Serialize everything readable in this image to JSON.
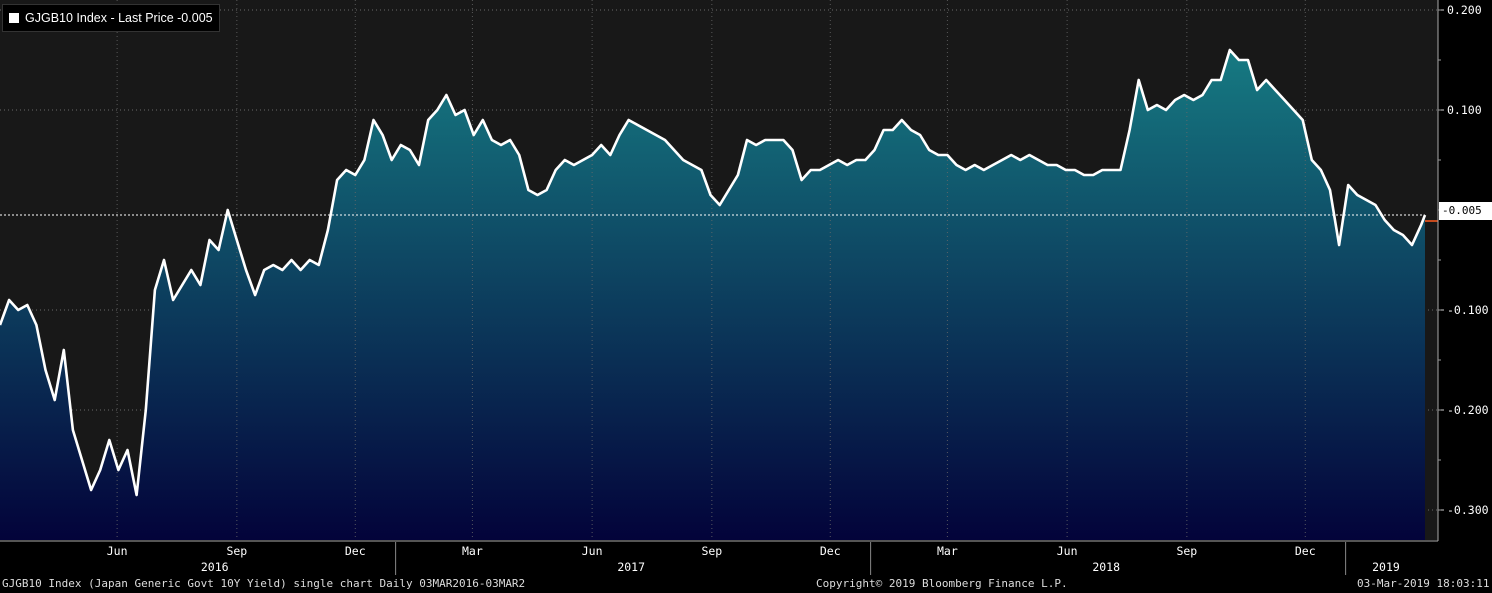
{
  "legend": {
    "label": "GJGB10 Index - Last Price -0.005"
  },
  "footer": {
    "left": "GJGB10 Index (Japan Generic Govt 10Y Yield) single chart  Daily 03MAR2016-03MAR2",
    "center": "Copyright© 2019 Bloomberg Finance L.P.",
    "right": "03-Mar-2019 18:03:11"
  },
  "colors": {
    "background": "#181818",
    "line": "#ffffff",
    "area_top": "#167a82",
    "area_bottom": "#03033a",
    "grid": "#6a6a6a",
    "last_marker": "#ff5a1f"
  },
  "chart_data": {
    "type": "area",
    "title": "GJGB10 Index - Last Price",
    "last_value_label": "-0.005",
    "ylim": [
      -0.33,
      0.21
    ],
    "y_ticks": [
      "0.200",
      "0.100",
      "-0.005",
      "-0.100",
      "-0.200",
      "-0.300"
    ],
    "y_tick_values": [
      0.2,
      0.1,
      -0.005,
      -0.1,
      -0.2,
      -0.3
    ],
    "grid": true,
    "x_month_labels": [
      {
        "date": "2016-06-01",
        "label": "Jun"
      },
      {
        "date": "2016-09-01",
        "label": "Sep"
      },
      {
        "date": "2016-12-01",
        "label": "Dec"
      },
      {
        "date": "2017-03-01",
        "label": "Mar"
      },
      {
        "date": "2017-06-01",
        "label": "Jun"
      },
      {
        "date": "2017-09-01",
        "label": "Sep"
      },
      {
        "date": "2017-12-01",
        "label": "Dec"
      },
      {
        "date": "2018-03-01",
        "label": "Mar"
      },
      {
        "date": "2018-06-01",
        "label": "Jun"
      },
      {
        "date": "2018-09-01",
        "label": "Sep"
      },
      {
        "date": "2018-12-01",
        "label": "Dec"
      }
    ],
    "x_year_labels": [
      {
        "date": "2016-08-15",
        "label": "2016"
      },
      {
        "date": "2017-07-01",
        "label": "2017"
      },
      {
        "date": "2018-07-01",
        "label": "2018"
      },
      {
        "date": "2019-02-01",
        "label": "2019"
      }
    ],
    "x_range": [
      "2016-03-03",
      "2019-03-03"
    ],
    "series": [
      {
        "name": "GJGB10 Index",
        "points": [
          [
            "2016-03-03",
            -0.115
          ],
          [
            "2016-03-10",
            -0.09
          ],
          [
            "2016-03-17",
            -0.1
          ],
          [
            "2016-03-24",
            -0.095
          ],
          [
            "2016-03-31",
            -0.115
          ],
          [
            "2016-04-07",
            -0.16
          ],
          [
            "2016-04-14",
            -0.19
          ],
          [
            "2016-04-21",
            -0.14
          ],
          [
            "2016-04-28",
            -0.22
          ],
          [
            "2016-05-05",
            -0.25
          ],
          [
            "2016-05-12",
            -0.28
          ],
          [
            "2016-05-19",
            -0.26
          ],
          [
            "2016-05-26",
            -0.23
          ],
          [
            "2016-06-02",
            -0.26
          ],
          [
            "2016-06-09",
            -0.24
          ],
          [
            "2016-06-16",
            -0.285
          ],
          [
            "2016-06-23",
            -0.2
          ],
          [
            "2016-06-30",
            -0.08
          ],
          [
            "2016-07-07",
            -0.05
          ],
          [
            "2016-07-14",
            -0.09
          ],
          [
            "2016-07-21",
            -0.075
          ],
          [
            "2016-07-28",
            -0.06
          ],
          [
            "2016-08-04",
            -0.075
          ],
          [
            "2016-08-11",
            -0.03
          ],
          [
            "2016-08-18",
            -0.04
          ],
          [
            "2016-08-25",
            0.0
          ],
          [
            "2016-09-01",
            -0.03
          ],
          [
            "2016-09-08",
            -0.06
          ],
          [
            "2016-09-15",
            -0.085
          ],
          [
            "2016-09-22",
            -0.06
          ],
          [
            "2016-09-29",
            -0.055
          ],
          [
            "2016-10-06",
            -0.06
          ],
          [
            "2016-10-13",
            -0.05
          ],
          [
            "2016-10-20",
            -0.06
          ],
          [
            "2016-10-27",
            -0.05
          ],
          [
            "2016-11-03",
            -0.055
          ],
          [
            "2016-11-10",
            -0.02
          ],
          [
            "2016-11-17",
            0.03
          ],
          [
            "2016-11-24",
            0.04
          ],
          [
            "2016-12-01",
            0.035
          ],
          [
            "2016-12-08",
            0.05
          ],
          [
            "2016-12-15",
            0.09
          ],
          [
            "2016-12-22",
            0.075
          ],
          [
            "2016-12-29",
            0.05
          ],
          [
            "2017-01-05",
            0.065
          ],
          [
            "2017-01-12",
            0.06
          ],
          [
            "2017-01-19",
            0.045
          ],
          [
            "2017-01-26",
            0.09
          ],
          [
            "2017-02-02",
            0.1
          ],
          [
            "2017-02-09",
            0.115
          ],
          [
            "2017-02-16",
            0.095
          ],
          [
            "2017-02-23",
            0.1
          ],
          [
            "2017-03-02",
            0.075
          ],
          [
            "2017-03-09",
            0.09
          ],
          [
            "2017-03-16",
            0.07
          ],
          [
            "2017-03-23",
            0.065
          ],
          [
            "2017-03-30",
            0.07
          ],
          [
            "2017-04-06",
            0.055
          ],
          [
            "2017-04-13",
            0.02
          ],
          [
            "2017-04-20",
            0.015
          ],
          [
            "2017-04-27",
            0.02
          ],
          [
            "2017-05-04",
            0.04
          ],
          [
            "2017-05-11",
            0.05
          ],
          [
            "2017-05-18",
            0.045
          ],
          [
            "2017-05-25",
            0.05
          ],
          [
            "2017-06-01",
            0.055
          ],
          [
            "2017-06-08",
            0.065
          ],
          [
            "2017-06-15",
            0.055
          ],
          [
            "2017-06-22",
            0.075
          ],
          [
            "2017-06-29",
            0.09
          ],
          [
            "2017-07-06",
            0.085
          ],
          [
            "2017-07-13",
            0.08
          ],
          [
            "2017-07-20",
            0.075
          ],
          [
            "2017-07-27",
            0.07
          ],
          [
            "2017-08-03",
            0.06
          ],
          [
            "2017-08-10",
            0.05
          ],
          [
            "2017-08-17",
            0.045
          ],
          [
            "2017-08-24",
            0.04
          ],
          [
            "2017-08-31",
            0.015
          ],
          [
            "2017-09-07",
            0.005
          ],
          [
            "2017-09-14",
            0.02
          ],
          [
            "2017-09-21",
            0.035
          ],
          [
            "2017-09-28",
            0.07
          ],
          [
            "2017-10-05",
            0.065
          ],
          [
            "2017-10-12",
            0.07
          ],
          [
            "2017-10-19",
            0.07
          ],
          [
            "2017-10-26",
            0.07
          ],
          [
            "2017-11-02",
            0.06
          ],
          [
            "2017-11-09",
            0.03
          ],
          [
            "2017-11-16",
            0.04
          ],
          [
            "2017-11-23",
            0.04
          ],
          [
            "2017-11-30",
            0.045
          ],
          [
            "2017-12-07",
            0.05
          ],
          [
            "2017-12-14",
            0.045
          ],
          [
            "2017-12-21",
            0.05
          ],
          [
            "2017-12-28",
            0.05
          ],
          [
            "2018-01-04",
            0.06
          ],
          [
            "2018-01-11",
            0.08
          ],
          [
            "2018-01-18",
            0.08
          ],
          [
            "2018-01-25",
            0.09
          ],
          [
            "2018-02-01",
            0.08
          ],
          [
            "2018-02-08",
            0.075
          ],
          [
            "2018-02-15",
            0.06
          ],
          [
            "2018-02-22",
            0.055
          ],
          [
            "2018-03-01",
            0.055
          ],
          [
            "2018-03-08",
            0.045
          ],
          [
            "2018-03-15",
            0.04
          ],
          [
            "2018-03-22",
            0.045
          ],
          [
            "2018-03-29",
            0.04
          ],
          [
            "2018-04-05",
            0.045
          ],
          [
            "2018-04-12",
            0.05
          ],
          [
            "2018-04-19",
            0.055
          ],
          [
            "2018-04-26",
            0.05
          ],
          [
            "2018-05-03",
            0.055
          ],
          [
            "2018-05-10",
            0.05
          ],
          [
            "2018-05-17",
            0.045
          ],
          [
            "2018-05-24",
            0.045
          ],
          [
            "2018-05-31",
            0.04
          ],
          [
            "2018-06-07",
            0.04
          ],
          [
            "2018-06-14",
            0.035
          ],
          [
            "2018-06-21",
            0.035
          ],
          [
            "2018-06-28",
            0.04
          ],
          [
            "2018-07-05",
            0.04
          ],
          [
            "2018-07-12",
            0.04
          ],
          [
            "2018-07-19",
            0.08
          ],
          [
            "2018-07-26",
            0.13
          ],
          [
            "2018-08-02",
            0.1
          ],
          [
            "2018-08-09",
            0.105
          ],
          [
            "2018-08-16",
            0.1
          ],
          [
            "2018-08-23",
            0.11
          ],
          [
            "2018-08-30",
            0.115
          ],
          [
            "2018-09-06",
            0.11
          ],
          [
            "2018-09-13",
            0.115
          ],
          [
            "2018-09-20",
            0.13
          ],
          [
            "2018-09-27",
            0.13
          ],
          [
            "2018-10-04",
            0.16
          ],
          [
            "2018-10-11",
            0.15
          ],
          [
            "2018-10-18",
            0.15
          ],
          [
            "2018-10-25",
            0.12
          ],
          [
            "2018-11-01",
            0.13
          ],
          [
            "2018-11-08",
            0.12
          ],
          [
            "2018-11-15",
            0.11
          ],
          [
            "2018-11-22",
            0.1
          ],
          [
            "2018-11-29",
            0.09
          ],
          [
            "2018-12-06",
            0.05
          ],
          [
            "2018-12-13",
            0.04
          ],
          [
            "2018-12-20",
            0.02
          ],
          [
            "2018-12-27",
            -0.035
          ],
          [
            "2019-01-03",
            0.025
          ],
          [
            "2019-01-10",
            0.015
          ],
          [
            "2019-01-17",
            0.01
          ],
          [
            "2019-01-24",
            0.005
          ],
          [
            "2019-01-31",
            -0.01
          ],
          [
            "2019-02-07",
            -0.02
          ],
          [
            "2019-02-14",
            -0.025
          ],
          [
            "2019-02-21",
            -0.035
          ],
          [
            "2019-02-28",
            -0.015
          ],
          [
            "2019-03-03",
            -0.005
          ]
        ]
      }
    ]
  }
}
